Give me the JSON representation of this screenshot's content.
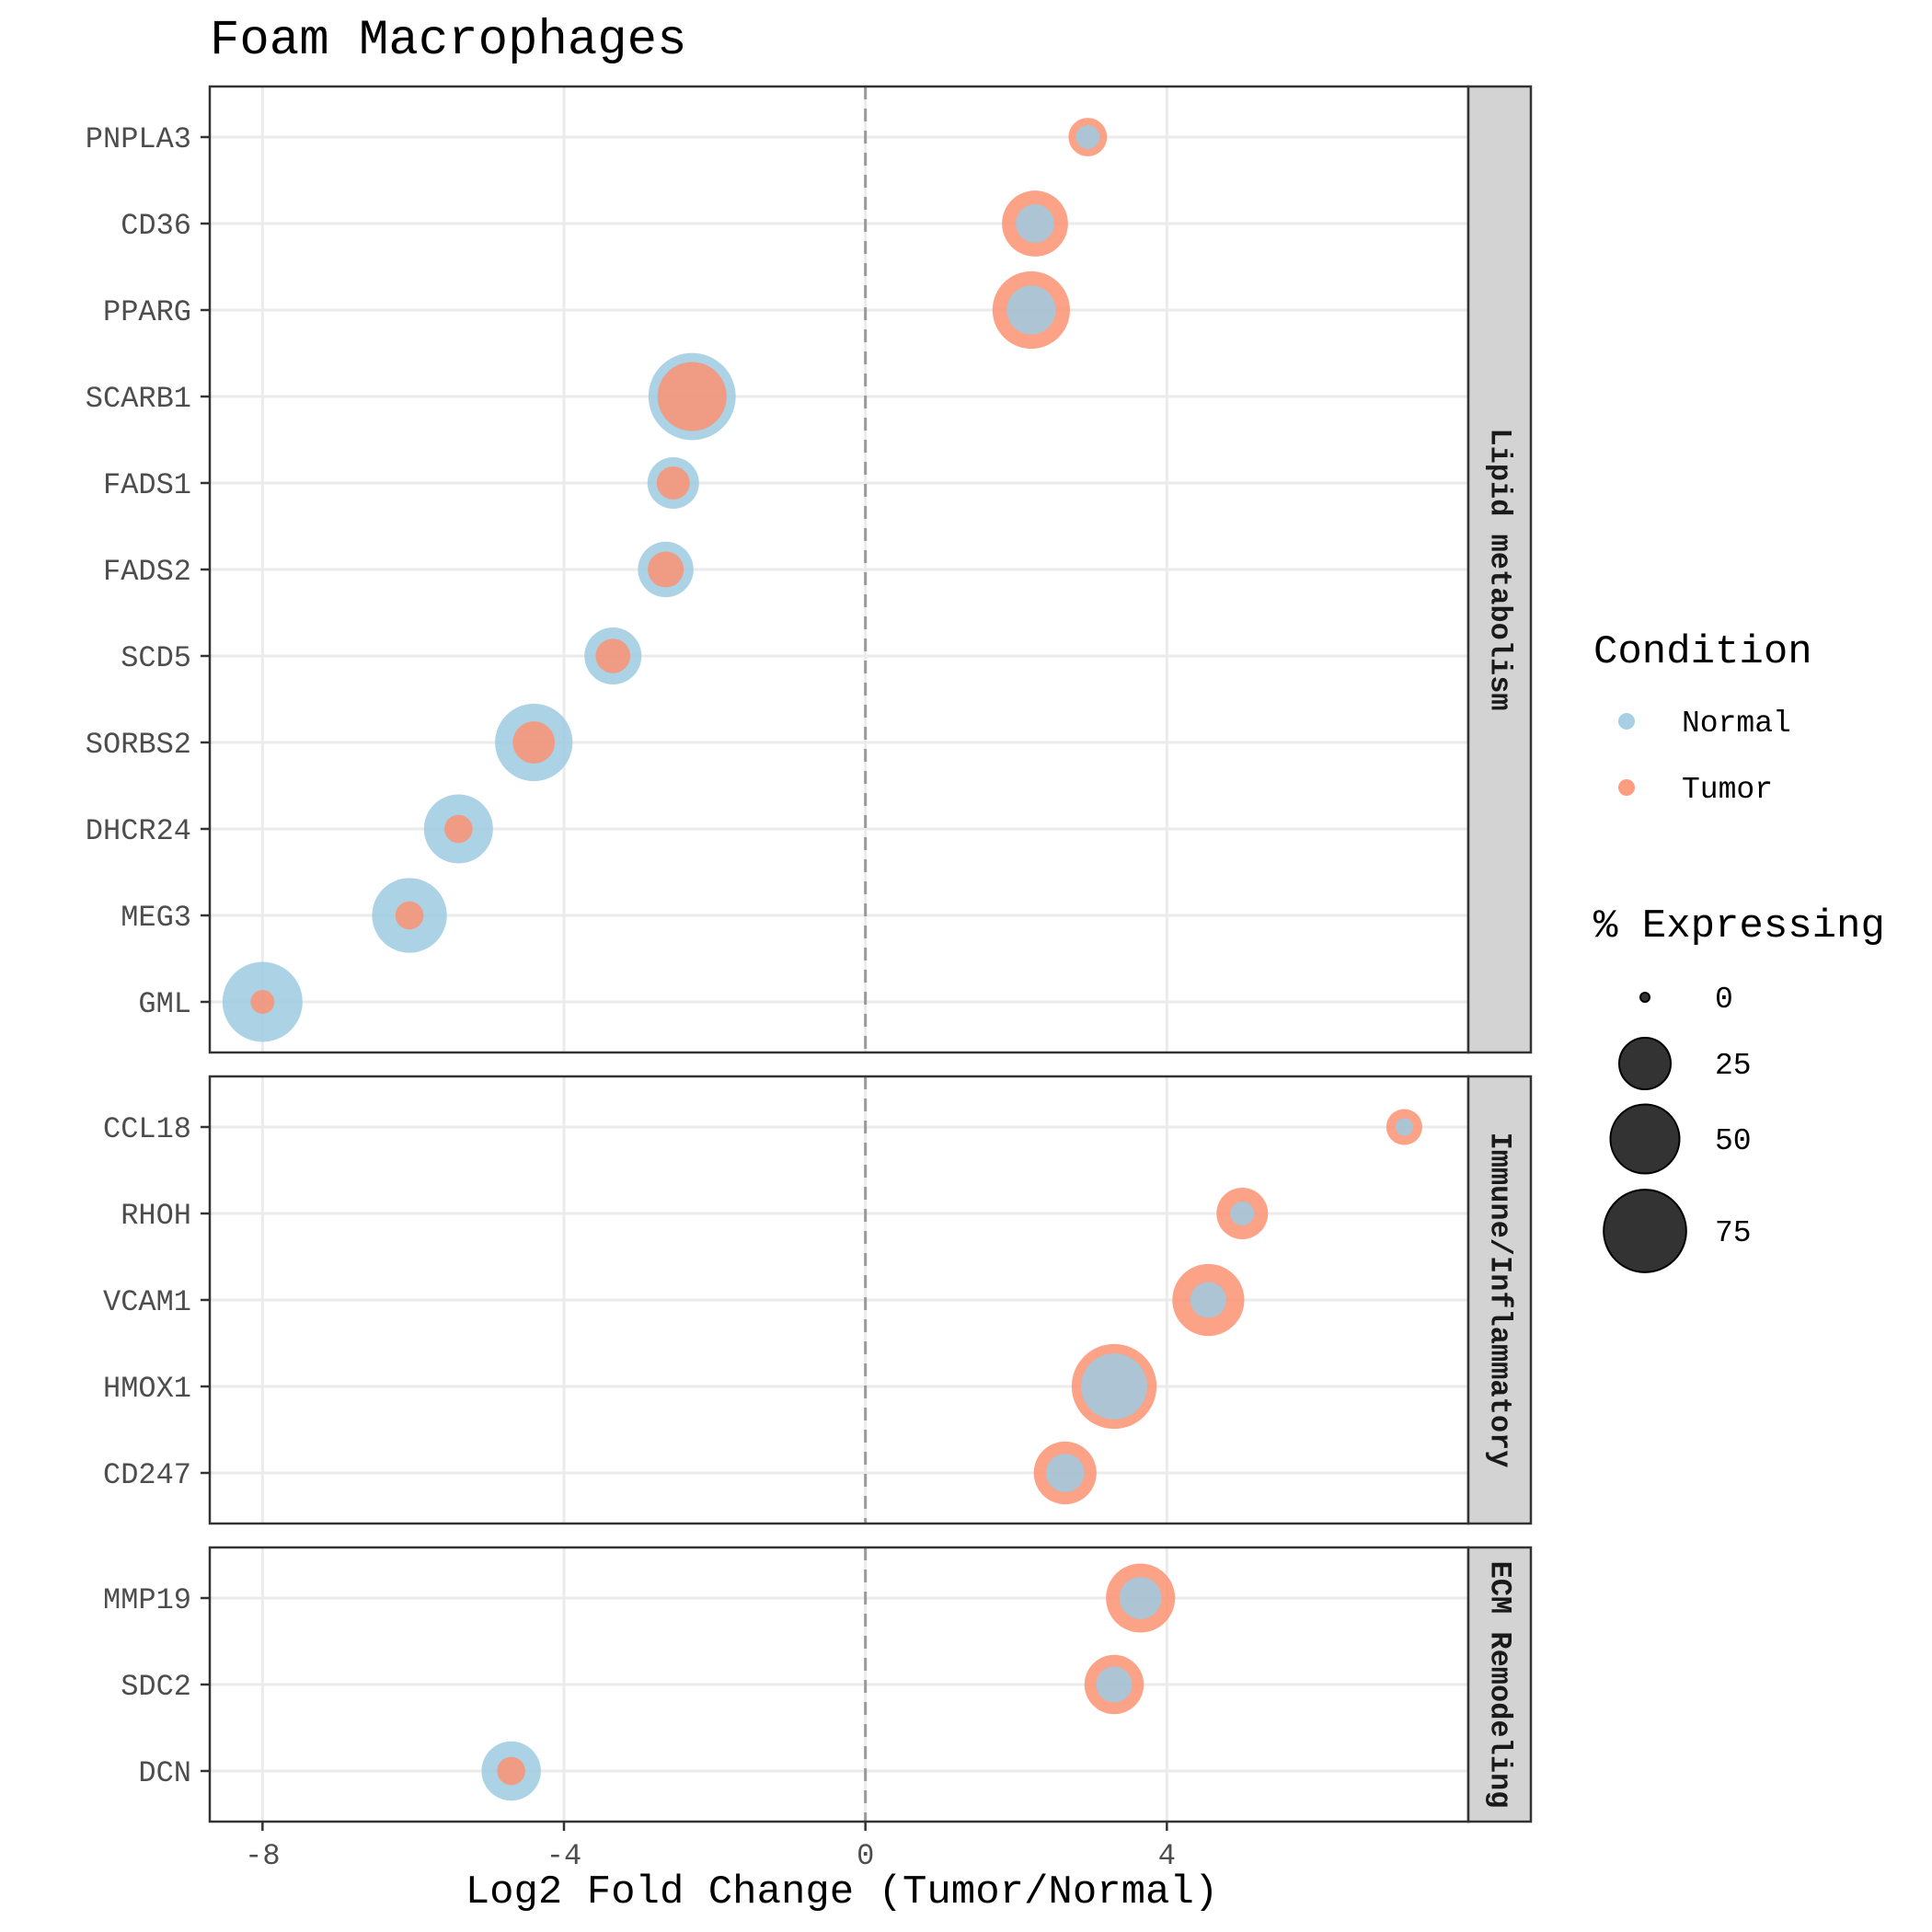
{
  "chart_data": {
    "type": "scatter",
    "title": "Foam Macrophages",
    "xlabel": "Log2 Fold Change (Tumor/Normal)",
    "ylabel": "",
    "xlim": [
      -8.7,
      8.0
    ],
    "x_ticks": [
      -8,
      -4,
      0,
      4
    ],
    "x_tick_labels": [
      "-8",
      "-4",
      "0",
      "4"
    ],
    "grid": true,
    "reference_line_x": 0,
    "legend_placement": "right",
    "colors": {
      "Normal": "#9ecae1",
      "Tumor": "#fc9272"
    },
    "legends": {
      "condition": {
        "title": "Condition",
        "entries": [
          "Normal",
          "Tumor"
        ]
      },
      "size": {
        "title": "% Expressing",
        "breaks": [
          0,
          25,
          50,
          75
        ],
        "labels": [
          "0",
          "25",
          "50",
          "75"
        ]
      }
    },
    "facets": [
      {
        "label": "Lipid metabolism",
        "genes": [
          {
            "gene": "PNPLA3",
            "log2fc": 2.95,
            "pct_normal": 3,
            "pct_tumor": 12
          },
          {
            "gene": "CD36",
            "log2fc": 2.25,
            "pct_normal": 12,
            "pct_tumor": 45
          },
          {
            "gene": "PPARG",
            "log2fc": 2.2,
            "pct_normal": 22,
            "pct_tumor": 65
          },
          {
            "gene": "SCARB1",
            "log2fc": -2.3,
            "pct_normal": 85,
            "pct_tumor": 50
          },
          {
            "gene": "FADS1",
            "log2fc": -2.55,
            "pct_normal": 25,
            "pct_tumor": 8
          },
          {
            "gene": "FADS2",
            "log2fc": -2.65,
            "pct_normal": 30,
            "pct_tumor": 10
          },
          {
            "gene": "SCD5",
            "log2fc": -3.35,
            "pct_normal": 32,
            "pct_tumor": 9
          },
          {
            "gene": "SORBS2",
            "log2fc": -4.4,
            "pct_normal": 65,
            "pct_tumor": 15
          },
          {
            "gene": "DHCR24",
            "log2fc": -5.4,
            "pct_normal": 50,
            "pct_tumor": 5
          },
          {
            "gene": "MEG3",
            "log2fc": -6.05,
            "pct_normal": 60,
            "pct_tumor": 5
          },
          {
            "gene": "GML",
            "log2fc": -8.0,
            "pct_normal": 70,
            "pct_tumor": 3
          }
        ]
      },
      {
        "label": "Immune/Inflammatory",
        "genes": [
          {
            "gene": "CCL18",
            "log2fc": 7.15,
            "pct_normal": 1,
            "pct_tumor": 10
          },
          {
            "gene": "RHOH",
            "log2fc": 5.0,
            "pct_normal": 3,
            "pct_tumor": 25
          },
          {
            "gene": "VCAM1",
            "log2fc": 4.55,
            "pct_normal": 10,
            "pct_tumor": 55
          },
          {
            "gene": "HMOX1",
            "log2fc": 3.3,
            "pct_normal": 45,
            "pct_tumor": 80
          },
          {
            "gene": "CD247",
            "log2fc": 2.65,
            "pct_normal": 12,
            "pct_tumor": 40
          }
        ]
      },
      {
        "label": "ECM Remodeling",
        "genes": [
          {
            "gene": "MMP19",
            "log2fc": 3.65,
            "pct_normal": 15,
            "pct_tumor": 50
          },
          {
            "gene": "SDC2",
            "log2fc": 3.3,
            "pct_normal": 10,
            "pct_tumor": 35
          },
          {
            "gene": "DCN",
            "log2fc": -4.7,
            "pct_normal": 35,
            "pct_tumor": 5
          }
        ]
      }
    ]
  }
}
